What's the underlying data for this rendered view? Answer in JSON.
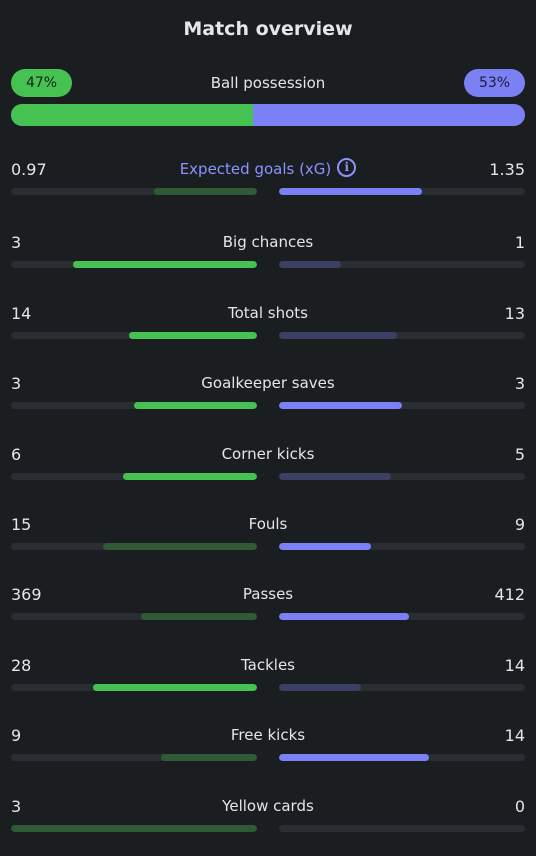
{
  "header": {
    "title": "Match overview"
  },
  "possession": {
    "label": "Ball possession",
    "home_text": "47%",
    "away_text": "53%",
    "home_fraction": 0.47
  },
  "colors": {
    "home": "#46c252",
    "away": "#7b80f5",
    "background": "#1a1e21"
  },
  "stats": [
    {
      "label": "Expected goals (xG)",
      "home": "0.97",
      "away": "1.35",
      "home_fill": 0.42,
      "away_fill": 0.58,
      "winner": "away",
      "has_info": true
    },
    {
      "label": "Big chances",
      "home": "3",
      "away": "1",
      "home_fill": 0.75,
      "away_fill": 0.25,
      "winner": "home"
    },
    {
      "label": "Total shots",
      "home": "14",
      "away": "13",
      "home_fill": 0.52,
      "away_fill": 0.48,
      "winner": "home"
    },
    {
      "label": "Goalkeeper saves",
      "home": "3",
      "away": "3",
      "home_fill": 0.5,
      "away_fill": 0.5,
      "winner": "both"
    },
    {
      "label": "Corner kicks",
      "home": "6",
      "away": "5",
      "home_fill": 0.545,
      "away_fill": 0.455,
      "winner": "home"
    },
    {
      "label": "Fouls",
      "home": "15",
      "away": "9",
      "home_fill": 0.625,
      "away_fill": 0.375,
      "winner": "away"
    },
    {
      "label": "Passes",
      "home": "369",
      "away": "412",
      "home_fill": 0.47,
      "away_fill": 0.53,
      "winner": "away"
    },
    {
      "label": "Tackles",
      "home": "28",
      "away": "14",
      "home_fill": 0.667,
      "away_fill": 0.333,
      "winner": "home"
    },
    {
      "label": "Free kicks",
      "home": "9",
      "away": "14",
      "home_fill": 0.39,
      "away_fill": 0.61,
      "winner": "away"
    },
    {
      "label": "Yellow cards",
      "home": "3",
      "away": "0",
      "home_fill": 1.0,
      "away_fill": 0.0,
      "winner": "away"
    }
  ]
}
